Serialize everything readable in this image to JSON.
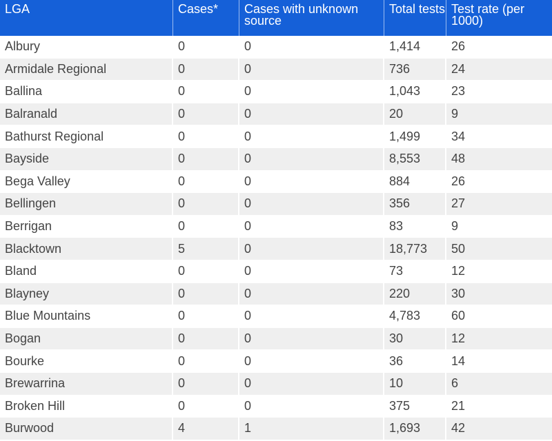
{
  "chart_data": {
    "type": "table",
    "columns": [
      "LGA",
      "Cases*",
      "Cases with unknown source",
      "Total tests",
      "Test rate (per 1000)"
    ],
    "rows": [
      [
        "Albury",
        "0",
        "0",
        "1,414",
        "26"
      ],
      [
        "Armidale Regional",
        "0",
        "0",
        "736",
        "24"
      ],
      [
        "Ballina",
        "0",
        "0",
        "1,043",
        "23"
      ],
      [
        "Balranald",
        "0",
        "0",
        "20",
        "9"
      ],
      [
        "Bathurst Regional",
        "0",
        "0",
        "1,499",
        "34"
      ],
      [
        "Bayside",
        "0",
        "0",
        "8,553",
        "48"
      ],
      [
        "Bega Valley",
        "0",
        "0",
        "884",
        "26"
      ],
      [
        "Bellingen",
        "0",
        "0",
        "356",
        "27"
      ],
      [
        "Berrigan",
        "0",
        "0",
        "83",
        "9"
      ],
      [
        "Blacktown",
        "5",
        "0",
        "18,773",
        "50"
      ],
      [
        "Bland",
        "0",
        "0",
        "73",
        "12"
      ],
      [
        "Blayney",
        "0",
        "0",
        "220",
        "30"
      ],
      [
        "Blue Mountains",
        "0",
        "0",
        "4,783",
        "60"
      ],
      [
        "Bogan",
        "0",
        "0",
        "30",
        "12"
      ],
      [
        "Bourke",
        "0",
        "0",
        "36",
        "14"
      ],
      [
        "Brewarrina",
        "0",
        "0",
        "10",
        "6"
      ],
      [
        "Broken Hill",
        "0",
        "0",
        "375",
        "21"
      ],
      [
        "Burwood",
        "4",
        "1",
        "1,693",
        "42"
      ]
    ]
  },
  "colors": {
    "header_bg": "#1560d8",
    "header_text": "#ffffff",
    "row_alt_bg": "#efefef",
    "cell_text": "#444444"
  }
}
